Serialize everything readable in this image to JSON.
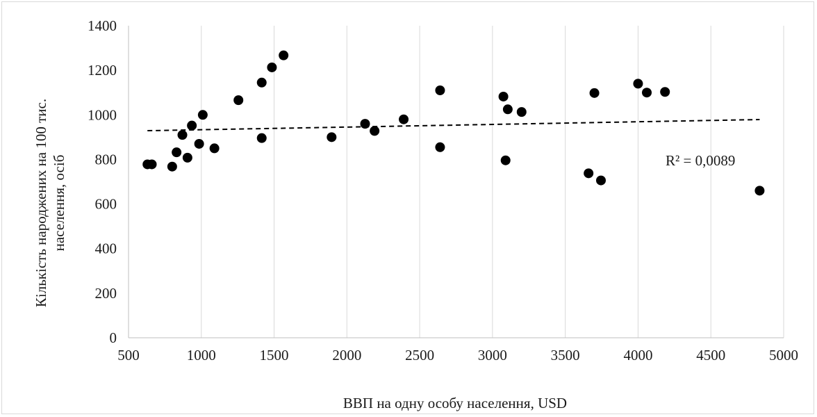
{
  "chart_data": {
    "type": "scatter",
    "xlabel": "ВВП на одну особу населення, USD",
    "ylabel_lines": [
      "Кількість народжених на 100 тис.",
      "населення, осіб"
    ],
    "xlim": [
      500,
      5000
    ],
    "ylim": [
      0,
      1400
    ],
    "xticks": [
      500,
      1000,
      1500,
      2000,
      2500,
      3000,
      3500,
      4000,
      4500,
      5000
    ],
    "yticks": [
      0,
      200,
      400,
      600,
      800,
      1000,
      1200,
      1400
    ],
    "grid": "vertical",
    "marker_color": "#000000",
    "points": [
      {
        "x": 630,
        "y": 778
      },
      {
        "x": 660,
        "y": 778
      },
      {
        "x": 800,
        "y": 768
      },
      {
        "x": 830,
        "y": 832
      },
      {
        "x": 870,
        "y": 910
      },
      {
        "x": 905,
        "y": 808
      },
      {
        "x": 935,
        "y": 952
      },
      {
        "x": 985,
        "y": 870
      },
      {
        "x": 1010,
        "y": 1000
      },
      {
        "x": 1090,
        "y": 850
      },
      {
        "x": 1255,
        "y": 1066
      },
      {
        "x": 1415,
        "y": 896
      },
      {
        "x": 1415,
        "y": 1145
      },
      {
        "x": 1485,
        "y": 1213
      },
      {
        "x": 1565,
        "y": 1267
      },
      {
        "x": 1895,
        "y": 900
      },
      {
        "x": 2125,
        "y": 960
      },
      {
        "x": 2190,
        "y": 928
      },
      {
        "x": 2390,
        "y": 980
      },
      {
        "x": 2640,
        "y": 855
      },
      {
        "x": 2640,
        "y": 1110
      },
      {
        "x": 3075,
        "y": 1082
      },
      {
        "x": 3090,
        "y": 796
      },
      {
        "x": 3105,
        "y": 1025
      },
      {
        "x": 3200,
        "y": 1013
      },
      {
        "x": 3660,
        "y": 738
      },
      {
        "x": 3700,
        "y": 1098
      },
      {
        "x": 3745,
        "y": 706
      },
      {
        "x": 4000,
        "y": 1140
      },
      {
        "x": 4060,
        "y": 1100
      },
      {
        "x": 4185,
        "y": 1103
      },
      {
        "x": 4835,
        "y": 660
      }
    ],
    "trendline": {
      "type": "linear",
      "style": "dashed",
      "from": [
        630,
        929
      ],
      "to": [
        4835,
        979
      ]
    },
    "annotation": "R² = 0,0089"
  }
}
